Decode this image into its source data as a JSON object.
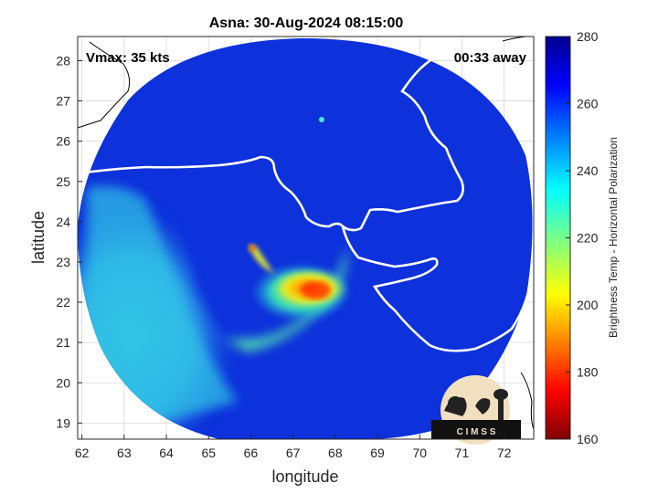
{
  "title": "Asna: 30-Aug-2024 08:15:00",
  "vmax_label": "Vmax: 35 kts",
  "time_label": "00:33 away",
  "x_axis": {
    "label": "longitude",
    "ticks": [
      "62",
      "63",
      "64",
      "65",
      "66",
      "67",
      "68",
      "69",
      "70",
      "71",
      "72"
    ],
    "range": [
      61.9,
      72.7
    ]
  },
  "y_axis": {
    "label": "latitude",
    "ticks": [
      "19",
      "20",
      "21",
      "22",
      "23",
      "24",
      "25",
      "26",
      "27",
      "28"
    ],
    "range": [
      18.6,
      28.6
    ]
  },
  "colorbar": {
    "label": "Brightness Temp - Horizontal Polarization",
    "ticks": [
      "280",
      "260",
      "240",
      "220",
      "200",
      "180",
      "160"
    ],
    "range": [
      160,
      280
    ],
    "colormap": "jet"
  },
  "logo_text": "C I M S S",
  "colors": {
    "background_scan": "#0a2fd9",
    "coastline": "#ffffff",
    "deep_convection": "#ff3300"
  },
  "swath": {
    "center_lon": 67.3,
    "center_lat": 23.5,
    "radius_deg": 5.6
  },
  "cyclone_center": {
    "lon": 67.6,
    "lat": 22.2
  }
}
